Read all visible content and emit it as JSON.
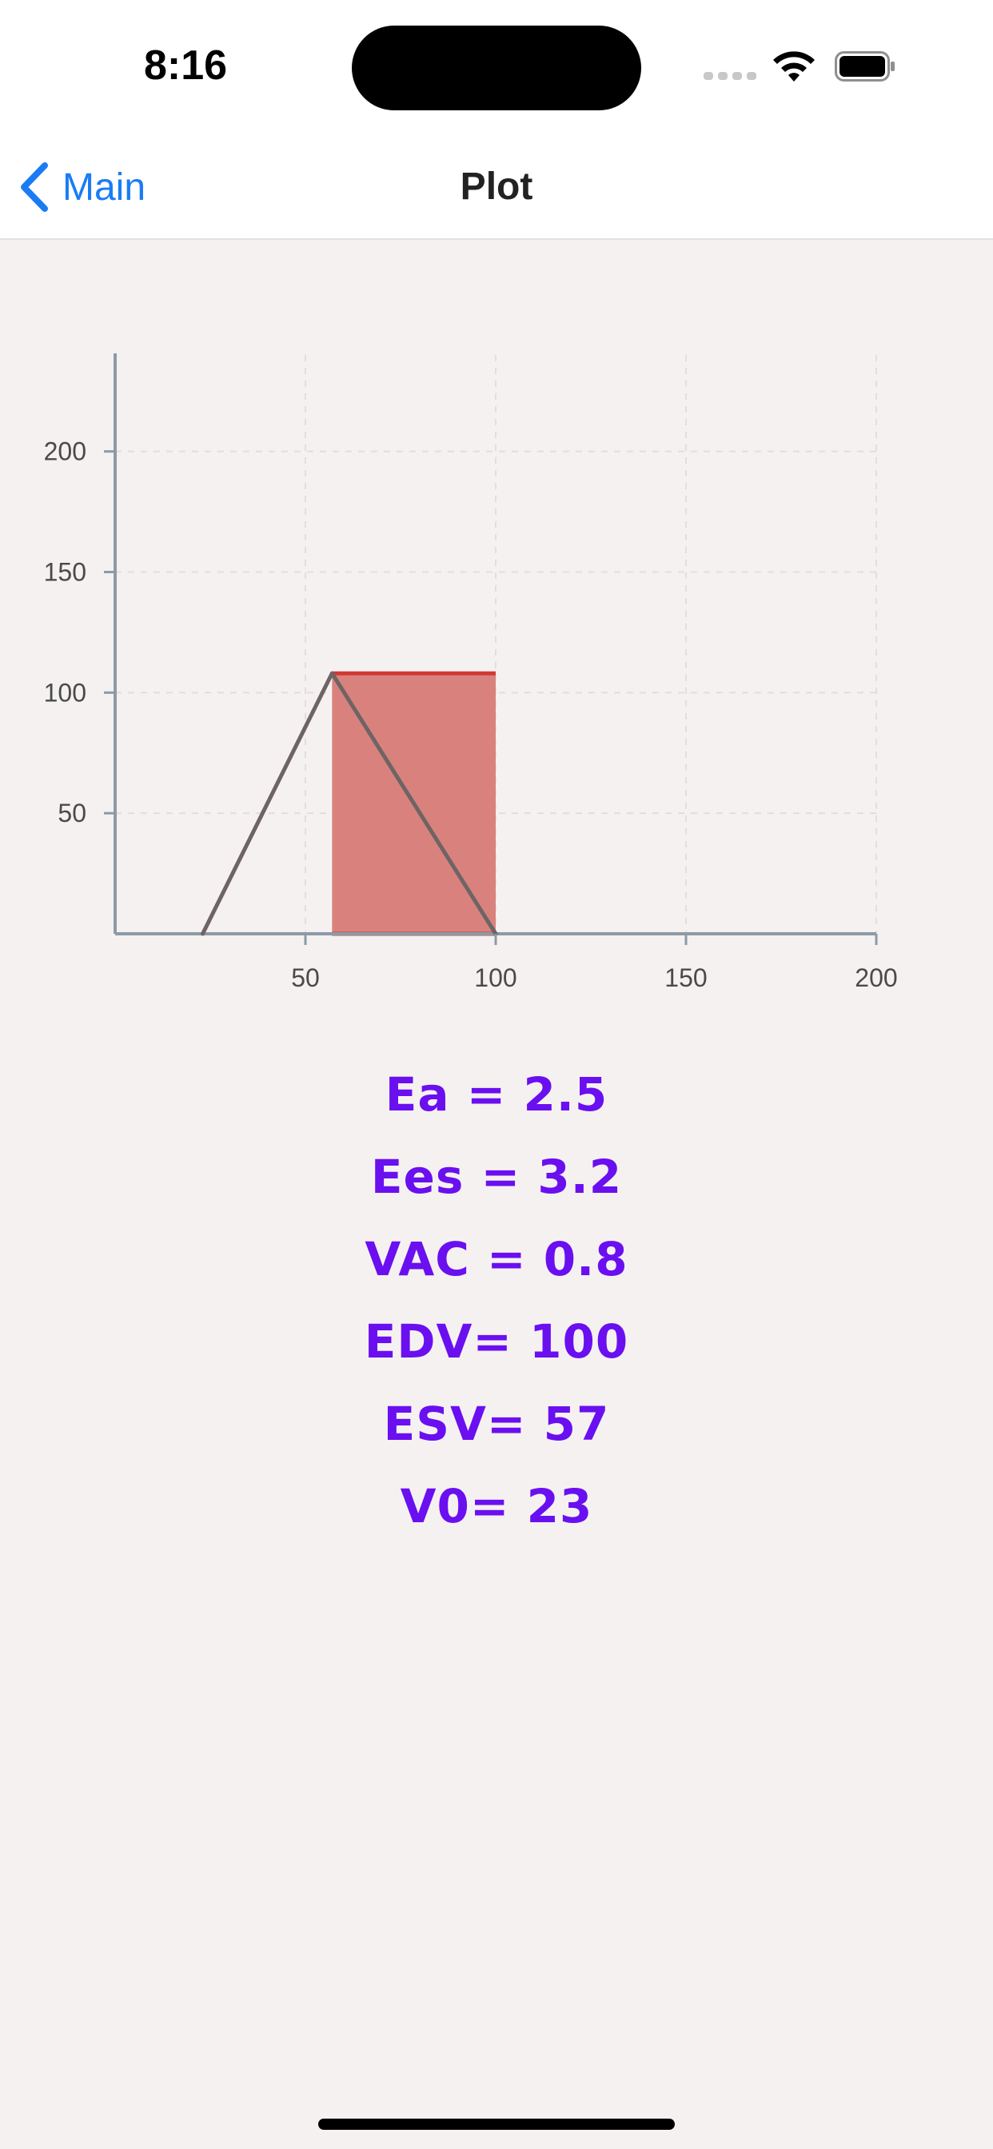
{
  "status_bar": {
    "time": "8:16",
    "icons": [
      "cellular-signal-icon",
      "wifi-icon",
      "battery-icon"
    ]
  },
  "nav": {
    "back_label": "Main",
    "back_icon": "chevron-left-icon",
    "title": "Plot"
  },
  "colors": {
    "accent": "#1a7cf5",
    "result_text": "#6a0ff0",
    "fill_area": "#d9827d",
    "fill_top_edge": "#d03a34",
    "line": "#6e6464",
    "axis": "#8c9aa6"
  },
  "chart_data": {
    "type": "line",
    "title": "",
    "xlabel": "",
    "ylabel": "",
    "xlim": [
      0,
      200
    ],
    "ylim": [
      0,
      240
    ],
    "x_ticks": [
      50,
      100,
      150,
      200
    ],
    "y_ticks": [
      50,
      100,
      150,
      200
    ],
    "grid": true,
    "series": [
      {
        "points": [
          [
            23,
            0
          ],
          [
            57,
            108
          ],
          [
            100,
            0
          ]
        ]
      }
    ],
    "filled_region": {
      "x": [
        57,
        100
      ],
      "y": [
        0,
        108
      ]
    }
  },
  "results": [
    "Ea = 2.5",
    "Ees = 3.2",
    "VAC = 0.8",
    "EDV= 100",
    "ESV= 57",
    "V0= 23"
  ]
}
